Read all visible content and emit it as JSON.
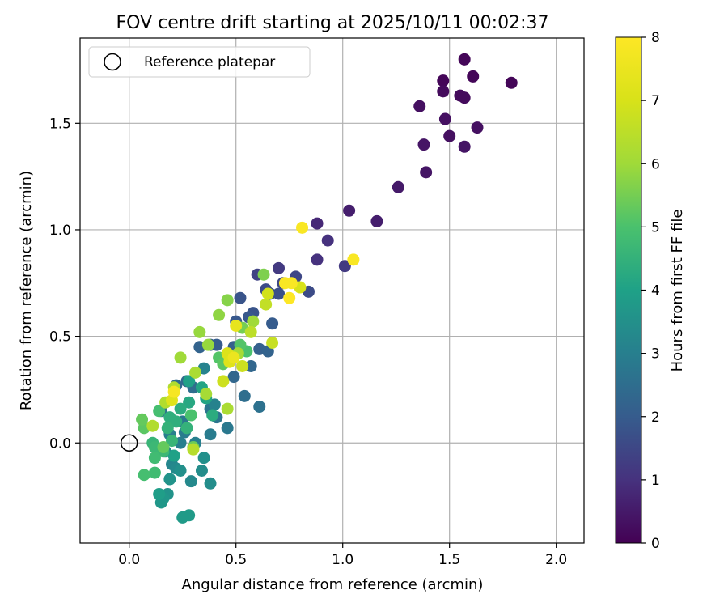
{
  "chart_data": {
    "type": "scatter",
    "title": "FOV centre drift starting at 2025/10/11 00:02:37",
    "xlabel": "Angular distance from reference (arcmin)",
    "ylabel": "Rotation from reference (arcmin)",
    "xlim": [
      -0.23,
      2.13
    ],
    "ylim": [
      -0.47,
      1.9
    ],
    "x_ticks": [
      0.0,
      0.5,
      1.0,
      1.5,
      2.0
    ],
    "x_tick_labels": [
      "0.0",
      "0.5",
      "1.0",
      "1.5",
      "2.0"
    ],
    "y_ticks": [
      0.0,
      0.5,
      1.0,
      1.5
    ],
    "y_tick_labels": [
      "0.0",
      "0.5",
      "1.0",
      "1.5"
    ],
    "grid": true,
    "legend": {
      "placement": "top-left",
      "entries": [
        "Reference platepar"
      ]
    },
    "reference_point": {
      "x": 0.0,
      "y": 0.0,
      "label": "Reference platepar"
    },
    "colorbar": {
      "label": "Hours from first FF file",
      "range": [
        0,
        8
      ],
      "ticks": [
        0,
        1,
        2,
        3,
        4,
        5,
        6,
        7,
        8
      ],
      "tick_labels": [
        "0",
        "1",
        "2",
        "3",
        "4",
        "5",
        "6",
        "7",
        "8"
      ],
      "colormap": "viridis"
    },
    "points": [
      {
        "x": 1.57,
        "y": 1.8,
        "h": 0.1
      },
      {
        "x": 1.61,
        "y": 1.72,
        "h": 0.1
      },
      {
        "x": 1.47,
        "y": 1.7,
        "h": 0.1
      },
      {
        "x": 1.79,
        "y": 1.69,
        "h": 0.1
      },
      {
        "x": 1.47,
        "y": 1.65,
        "h": 0.2
      },
      {
        "x": 1.55,
        "y": 1.63,
        "h": 0.2
      },
      {
        "x": 1.57,
        "y": 1.62,
        "h": 0.2
      },
      {
        "x": 1.36,
        "y": 1.58,
        "h": 0.3
      },
      {
        "x": 1.48,
        "y": 1.52,
        "h": 0.3
      },
      {
        "x": 1.63,
        "y": 1.48,
        "h": 0.3
      },
      {
        "x": 1.5,
        "y": 1.44,
        "h": 0.3
      },
      {
        "x": 1.38,
        "y": 1.4,
        "h": 0.4
      },
      {
        "x": 1.57,
        "y": 1.39,
        "h": 0.4
      },
      {
        "x": 1.39,
        "y": 1.27,
        "h": 0.4
      },
      {
        "x": 1.26,
        "y": 1.2,
        "h": 0.5
      },
      {
        "x": 1.03,
        "y": 1.09,
        "h": 0.6
      },
      {
        "x": 1.16,
        "y": 1.04,
        "h": 0.6
      },
      {
        "x": 0.88,
        "y": 1.03,
        "h": 0.8
      },
      {
        "x": 0.93,
        "y": 0.95,
        "h": 1.0
      },
      {
        "x": 0.88,
        "y": 0.86,
        "h": 1.0
      },
      {
        "x": 1.01,
        "y": 0.83,
        "h": 1.2
      },
      {
        "x": 0.7,
        "y": 0.82,
        "h": 1.2
      },
      {
        "x": 0.6,
        "y": 0.79,
        "h": 1.4
      },
      {
        "x": 0.78,
        "y": 0.78,
        "h": 1.5
      },
      {
        "x": 0.72,
        "y": 0.75,
        "h": 1.5
      },
      {
        "x": 0.64,
        "y": 0.72,
        "h": 1.6
      },
      {
        "x": 0.84,
        "y": 0.71,
        "h": 1.6
      },
      {
        "x": 0.66,
        "y": 0.7,
        "h": 1.7
      },
      {
        "x": 0.7,
        "y": 0.7,
        "h": 1.7
      },
      {
        "x": 0.52,
        "y": 0.68,
        "h": 1.8
      },
      {
        "x": 0.58,
        "y": 0.61,
        "h": 1.8
      },
      {
        "x": 0.56,
        "y": 0.59,
        "h": 1.9
      },
      {
        "x": 0.5,
        "y": 0.57,
        "h": 1.9
      },
      {
        "x": 0.67,
        "y": 0.56,
        "h": 2.0
      },
      {
        "x": 0.41,
        "y": 0.46,
        "h": 2.0
      },
      {
        "x": 0.38,
        "y": 0.46,
        "h": 2.0
      },
      {
        "x": 0.49,
        "y": 0.45,
        "h": 2.1
      },
      {
        "x": 0.61,
        "y": 0.44,
        "h": 2.1
      },
      {
        "x": 0.65,
        "y": 0.43,
        "h": 2.2
      },
      {
        "x": 0.33,
        "y": 0.45,
        "h": 2.2
      },
      {
        "x": 0.57,
        "y": 0.36,
        "h": 2.3
      },
      {
        "x": 0.49,
        "y": 0.31,
        "h": 2.3
      },
      {
        "x": 0.27,
        "y": 0.29,
        "h": 2.4
      },
      {
        "x": 0.22,
        "y": 0.27,
        "h": 2.4
      },
      {
        "x": 0.3,
        "y": 0.26,
        "h": 2.5
      },
      {
        "x": 0.54,
        "y": 0.22,
        "h": 2.5
      },
      {
        "x": 0.61,
        "y": 0.17,
        "h": 2.6
      },
      {
        "x": 0.15,
        "y": 0.15,
        "h": 2.6
      },
      {
        "x": 0.38,
        "y": 0.16,
        "h": 2.7
      },
      {
        "x": 0.41,
        "y": 0.12,
        "h": 2.7
      },
      {
        "x": 0.25,
        "y": 0.1,
        "h": 2.8
      },
      {
        "x": 0.46,
        "y": 0.07,
        "h": 2.8
      },
      {
        "x": 0.26,
        "y": 0.05,
        "h": 2.9
      },
      {
        "x": 0.38,
        "y": 0.04,
        "h": 2.9
      },
      {
        "x": 0.19,
        "y": 0.04,
        "h": 3.0
      },
      {
        "x": 0.31,
        "y": 0.0,
        "h": 3.0
      },
      {
        "x": 0.24,
        "y": 0.0,
        "h": 3.0
      },
      {
        "x": 0.35,
        "y": 0.35,
        "h": 3.1
      },
      {
        "x": 0.4,
        "y": 0.18,
        "h": 3.1
      },
      {
        "x": 0.17,
        "y": -0.04,
        "h": 3.2
      },
      {
        "x": 0.2,
        "y": -0.1,
        "h": 3.2
      },
      {
        "x": 0.22,
        "y": -0.12,
        "h": 3.3
      },
      {
        "x": 0.29,
        "y": -0.18,
        "h": 3.3
      },
      {
        "x": 0.38,
        "y": -0.19,
        "h": 3.4
      },
      {
        "x": 0.34,
        "y": -0.13,
        "h": 3.4
      },
      {
        "x": 0.35,
        "y": -0.07,
        "h": 3.5
      },
      {
        "x": 0.24,
        "y": -0.13,
        "h": 3.5
      },
      {
        "x": 0.19,
        "y": -0.17,
        "h": 3.6
      },
      {
        "x": 0.18,
        "y": -0.24,
        "h": 3.6
      },
      {
        "x": 0.16,
        "y": -0.26,
        "h": 3.7
      },
      {
        "x": 0.15,
        "y": -0.28,
        "h": 3.7
      },
      {
        "x": 0.28,
        "y": -0.34,
        "h": 3.8
      },
      {
        "x": 0.25,
        "y": -0.35,
        "h": 3.8
      },
      {
        "x": 0.14,
        "y": -0.24,
        "h": 3.9
      },
      {
        "x": 0.21,
        "y": -0.06,
        "h": 4.0
      },
      {
        "x": 0.28,
        "y": 0.29,
        "h": 4.0
      },
      {
        "x": 0.34,
        "y": 0.26,
        "h": 4.1
      },
      {
        "x": 0.36,
        "y": 0.21,
        "h": 4.1
      },
      {
        "x": 0.28,
        "y": 0.19,
        "h": 4.2
      },
      {
        "x": 0.24,
        "y": 0.16,
        "h": 4.3
      },
      {
        "x": 0.39,
        "y": 0.13,
        "h": 4.3
      },
      {
        "x": 0.19,
        "y": 0.12,
        "h": 4.4
      },
      {
        "x": 0.22,
        "y": 0.1,
        "h": 4.4
      },
      {
        "x": 0.27,
        "y": 0.07,
        "h": 4.5
      },
      {
        "x": 0.18,
        "y": 0.07,
        "h": 4.5
      },
      {
        "x": 0.2,
        "y": 0.01,
        "h": 4.6
      },
      {
        "x": 0.11,
        "y": 0.0,
        "h": 4.6
      },
      {
        "x": 0.12,
        "y": -0.02,
        "h": 4.7
      },
      {
        "x": 0.16,
        "y": -0.04,
        "h": 4.7
      },
      {
        "x": 0.12,
        "y": -0.07,
        "h": 4.8
      },
      {
        "x": 0.12,
        "y": -0.14,
        "h": 4.8
      },
      {
        "x": 0.07,
        "y": -0.15,
        "h": 4.9
      },
      {
        "x": 0.14,
        "y": 0.15,
        "h": 4.9
      },
      {
        "x": 0.29,
        "y": 0.13,
        "h": 5.0
      },
      {
        "x": 0.55,
        "y": 0.43,
        "h": 5.0
      },
      {
        "x": 0.42,
        "y": 0.4,
        "h": 5.1
      },
      {
        "x": 0.52,
        "y": 0.46,
        "h": 5.1
      },
      {
        "x": 0.44,
        "y": 0.37,
        "h": 5.2
      },
      {
        "x": 0.07,
        "y": 0.07,
        "h": 5.2
      },
      {
        "x": 0.06,
        "y": 0.11,
        "h": 5.3
      },
      {
        "x": 0.16,
        "y": -0.02,
        "h": 5.3
      },
      {
        "x": 0.3,
        "y": -0.02,
        "h": 5.4
      },
      {
        "x": 0.48,
        "y": 0.4,
        "h": 5.5
      },
      {
        "x": 0.53,
        "y": 0.54,
        "h": 5.5
      },
      {
        "x": 0.63,
        "y": 0.79,
        "h": 5.6
      },
      {
        "x": 0.46,
        "y": 0.67,
        "h": 5.7
      },
      {
        "x": 0.42,
        "y": 0.6,
        "h": 5.8
      },
      {
        "x": 0.33,
        "y": 0.52,
        "h": 5.9
      },
      {
        "x": 0.37,
        "y": 0.46,
        "h": 5.9
      },
      {
        "x": 0.24,
        "y": 0.4,
        "h": 6.0
      },
      {
        "x": 0.58,
        "y": 0.57,
        "h": 6.0
      },
      {
        "x": 0.51,
        "y": 0.42,
        "h": 6.1
      },
      {
        "x": 0.36,
        "y": 0.23,
        "h": 6.1
      },
      {
        "x": 0.46,
        "y": 0.16,
        "h": 6.2
      },
      {
        "x": 0.31,
        "y": 0.33,
        "h": 6.2
      },
      {
        "x": 0.21,
        "y": 0.26,
        "h": 6.3
      },
      {
        "x": 0.17,
        "y": 0.19,
        "h": 6.3
      },
      {
        "x": 0.11,
        "y": 0.08,
        "h": 6.3
      },
      {
        "x": 0.3,
        "y": -0.03,
        "h": 6.4
      },
      {
        "x": 0.57,
        "y": 0.52,
        "h": 6.5
      },
      {
        "x": 0.64,
        "y": 0.65,
        "h": 6.6
      },
      {
        "x": 0.67,
        "y": 0.47,
        "h": 6.7
      },
      {
        "x": 0.53,
        "y": 0.36,
        "h": 6.8
      },
      {
        "x": 0.44,
        "y": 0.29,
        "h": 6.8
      },
      {
        "x": 0.65,
        "y": 0.7,
        "h": 6.9
      },
      {
        "x": 0.8,
        "y": 0.73,
        "h": 7.0
      },
      {
        "x": 0.46,
        "y": 0.42,
        "h": 7.1
      },
      {
        "x": 0.47,
        "y": 0.38,
        "h": 7.2
      },
      {
        "x": 0.2,
        "y": 0.2,
        "h": 7.2
      },
      {
        "x": 0.5,
        "y": 0.55,
        "h": 7.4
      },
      {
        "x": 0.49,
        "y": 0.4,
        "h": 7.5
      },
      {
        "x": 0.21,
        "y": 0.24,
        "h": 7.8
      },
      {
        "x": 0.81,
        "y": 1.01,
        "h": 7.9
      },
      {
        "x": 1.05,
        "y": 0.86,
        "h": 7.9
      },
      {
        "x": 0.73,
        "y": 0.75,
        "h": 7.9
      },
      {
        "x": 0.76,
        "y": 0.75,
        "h": 7.9
      },
      {
        "x": 0.75,
        "y": 0.68,
        "h": 8.0
      }
    ]
  }
}
